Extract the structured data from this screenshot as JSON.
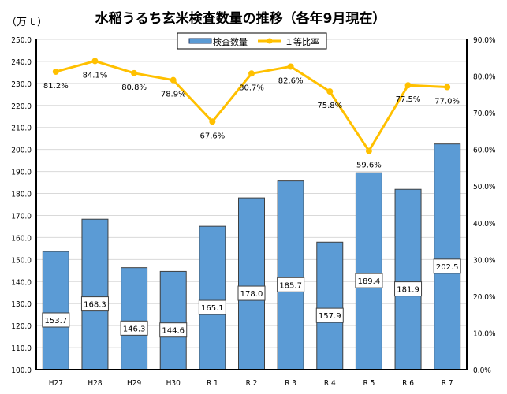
{
  "chart_data": {
    "type": "bar",
    "title": "水稲うるち玄米検査数量の推移（各年9月現在）",
    "unit_label": "（万ｔ）",
    "categories": [
      "H27",
      "H28",
      "H29",
      "H30",
      "R 1",
      "R 2",
      "R 3",
      "R 4",
      "R 5",
      "R 6",
      "R 7"
    ],
    "series": [
      {
        "name": "検査数量",
        "type": "bar",
        "axis": "left",
        "color": "#5B9BD5",
        "values": [
          153.7,
          168.3,
          146.3,
          144.6,
          165.1,
          178.0,
          185.7,
          157.9,
          189.4,
          181.9,
          202.5
        ],
        "labels": [
          "153.7",
          "168.3",
          "146.3",
          "144.6",
          "165.1",
          "178.0",
          "185.7",
          "157.9",
          "189.4",
          "181.9",
          "202.5"
        ]
      },
      {
        "name": "１等比率",
        "type": "line",
        "axis": "right",
        "color": "#FFC000",
        "values": [
          81.2,
          84.1,
          80.8,
          78.9,
          67.6,
          80.7,
          82.6,
          75.8,
          59.6,
          77.5,
          77.0
        ],
        "labels": [
          "81.2%",
          "84.1%",
          "80.8%",
          "78.9%",
          "67.6%",
          "80.7%",
          "82.6%",
          "75.8%",
          "59.6%",
          "77.5%",
          "77.0%"
        ]
      }
    ],
    "y_left": {
      "range": [
        100,
        250
      ],
      "ticks": [
        "100.0",
        "110.0",
        "120.0",
        "130.0",
        "140.0",
        "150.0",
        "160.0",
        "170.0",
        "180.0",
        "190.0",
        "200.0",
        "210.0",
        "220.0",
        "230.0",
        "240.0",
        "250.0"
      ]
    },
    "y_right": {
      "range": [
        0,
        90
      ],
      "ticks": [
        "0.0%",
        "10.0%",
        "20.0%",
        "30.0%",
        "40.0%",
        "50.0%",
        "60.0%",
        "70.0%",
        "80.0%",
        "90.0%"
      ]
    },
    "grid": true,
    "legend": "top-center",
    "legend_items": [
      "検査数量",
      "１等比率"
    ]
  }
}
